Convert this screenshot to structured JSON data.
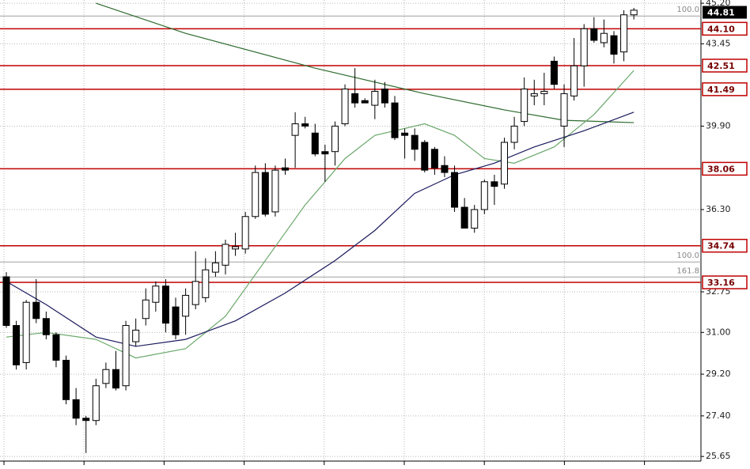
{
  "chart_data": {
    "type": "candlestick",
    "ylim": [
      25.45,
      45.34
    ],
    "yticks": [
      {
        "value": 45.2,
        "label": "45.20"
      },
      43.45,
      {
        "value": 39.9,
        "label": "39.90"
      },
      {
        "value": 36.3,
        "label": "36.30"
      },
      32.75,
      {
        "value": 31.0,
        "label": "31.00"
      },
      {
        "value": 29.2,
        "label": "29.20"
      },
      {
        "value": 27.4,
        "label": "27.40"
      },
      25.65
    ],
    "grid": true,
    "up_color": "#ffffff",
    "down_color": "#000000",
    "ohlc": [
      [
        33.4,
        33.6,
        31.2,
        31.3
      ],
      [
        31.3,
        31.5,
        29.4,
        29.6
      ],
      [
        29.7,
        32.4,
        29.4,
        32.3
      ],
      [
        32.3,
        33.3,
        31.4,
        31.6
      ],
      [
        31.6,
        31.9,
        30.7,
        30.9
      ],
      [
        30.9,
        31.0,
        29.5,
        29.8
      ],
      [
        29.8,
        30.0,
        27.9,
        28.1
      ],
      [
        28.1,
        28.6,
        27.0,
        27.3
      ],
      [
        27.3,
        27.4,
        25.8,
        27.2
      ],
      [
        27.2,
        29.0,
        27.0,
        28.7
      ],
      [
        28.8,
        29.7,
        28.6,
        29.4
      ],
      [
        29.4,
        30.2,
        28.5,
        28.6
      ],
      [
        28.7,
        31.5,
        28.5,
        31.3
      ],
      [
        30.6,
        31.6,
        30.4,
        31.1
      ],
      [
        31.6,
        32.9,
        31.3,
        32.4
      ],
      [
        32.3,
        33.2,
        31.9,
        33.0
      ],
      [
        33.0,
        33.3,
        31.0,
        31.4
      ],
      [
        32.1,
        32.5,
        30.7,
        30.9
      ],
      [
        31.7,
        32.9,
        30.9,
        32.6
      ],
      [
        32.2,
        34.5,
        32.0,
        33.2
      ],
      [
        32.5,
        34.2,
        32.3,
        33.7
      ],
      [
        33.6,
        34.5,
        33.4,
        34.0
      ],
      [
        33.9,
        35.0,
        33.5,
        34.8
      ],
      [
        34.6,
        35.3,
        34.3,
        34.7
      ],
      [
        34.6,
        36.2,
        34.4,
        36.0
      ],
      [
        36.0,
        38.2,
        35.9,
        37.9
      ],
      [
        37.9,
        38.3,
        36.0,
        36.1
      ],
      [
        36.2,
        38.2,
        36.0,
        38.0
      ],
      [
        38.1,
        38.5,
        37.8,
        38.0
      ],
      [
        39.5,
        40.5,
        38.1,
        40.0
      ],
      [
        40.0,
        40.3,
        39.8,
        39.9
      ],
      [
        39.6,
        40.0,
        38.6,
        38.7
      ],
      [
        38.8,
        39.1,
        37.5,
        38.7
      ],
      [
        38.8,
        40.1,
        38.2,
        39.9
      ],
      [
        40.0,
        41.7,
        39.9,
        41.5
      ],
      [
        41.3,
        42.4,
        40.7,
        40.9
      ],
      [
        41.0,
        41.1,
        40.9,
        40.9
      ],
      [
        40.8,
        41.9,
        40.2,
        41.4
      ],
      [
        41.5,
        41.8,
        40.7,
        40.9
      ],
      [
        40.9,
        41.2,
        39.3,
        39.4
      ],
      [
        39.6,
        39.8,
        38.5,
        39.5
      ],
      [
        39.5,
        39.8,
        38.4,
        38.9
      ],
      [
        39.2,
        39.3,
        37.9,
        38.0
      ],
      [
        38.9,
        39.0,
        37.8,
        38.1
      ],
      [
        38.2,
        38.6,
        37.7,
        37.9
      ],
      [
        37.9,
        38.2,
        36.2,
        36.4
      ],
      [
        36.4,
        36.8,
        35.5,
        35.5
      ],
      [
        35.5,
        36.5,
        35.3,
        36.3
      ],
      [
        36.3,
        37.6,
        36.1,
        37.5
      ],
      [
        37.5,
        37.8,
        36.5,
        37.3
      ],
      [
        37.4,
        39.4,
        37.2,
        39.2
      ],
      [
        39.2,
        40.3,
        38.9,
        39.9
      ],
      [
        40.1,
        42.0,
        39.9,
        41.5
      ],
      [
        41.2,
        41.9,
        40.8,
        41.3
      ],
      [
        41.3,
        42.2,
        40.8,
        41.4
      ],
      [
        42.7,
        42.9,
        41.5,
        41.7
      ],
      [
        39.9,
        41.7,
        39.0,
        41.3
      ],
      [
        41.2,
        43.7,
        41.0,
        42.5
      ],
      [
        42.5,
        44.3,
        41.6,
        44.1
      ],
      [
        44.1,
        44.6,
        43.5,
        43.6
      ],
      [
        43.5,
        44.5,
        43.3,
        43.9
      ],
      [
        43.8,
        44.0,
        42.6,
        43.0
      ],
      [
        43.1,
        44.9,
        42.7,
        44.7
      ],
      [
        44.7,
        45.0,
        44.5,
        44.9
      ]
    ],
    "moving_averages": [
      {
        "color": "#2e6b2e",
        "x": [
          9,
          18,
          31,
          42,
          50,
          56,
          63
        ],
        "values": [
          45.2,
          43.9,
          42.4,
          41.3,
          40.6,
          40.15,
          40.05
        ]
      },
      {
        "color": "#6aa86a",
        "x": [
          0,
          4,
          9,
          13,
          18,
          22,
          26,
          30,
          34,
          37,
          39,
          42,
          45,
          48,
          51,
          55,
          59,
          63
        ],
        "values": [
          30.8,
          31.0,
          30.7,
          29.9,
          30.3,
          31.7,
          34.1,
          36.5,
          38.5,
          39.5,
          39.7,
          40.0,
          39.5,
          38.5,
          38.3,
          39.0,
          40.4,
          42.3
        ]
      },
      {
        "color": "#1a1a5e",
        "x": [
          0,
          4,
          9,
          13,
          18,
          23,
          28,
          33,
          37,
          41,
          45,
          49,
          53,
          58,
          63
        ],
        "values": [
          33.2,
          32.2,
          30.8,
          30.4,
          30.7,
          31.5,
          32.7,
          34.1,
          35.4,
          37.0,
          37.8,
          38.3,
          39.0,
          39.7,
          40.5
        ]
      }
    ],
    "levels_color": "#c00000",
    "levels": [
      {
        "value": 44.1,
        "label": "44.10"
      },
      {
        "value": 42.51,
        "label": "42.51"
      },
      {
        "value": 41.49,
        "label": "41.49"
      },
      {
        "value": 38.06,
        "label": "38.06"
      },
      {
        "value": 34.74,
        "label": "34.74"
      },
      {
        "value": 33.16,
        "label": "33.16"
      }
    ],
    "fib_levels": [
      {
        "value": 44.65,
        "label": "100.0"
      },
      {
        "value": 34.04,
        "label": "100.0"
      },
      {
        "value": 33.39,
        "label": "161.8"
      }
    ],
    "last_price": 44.81
  }
}
